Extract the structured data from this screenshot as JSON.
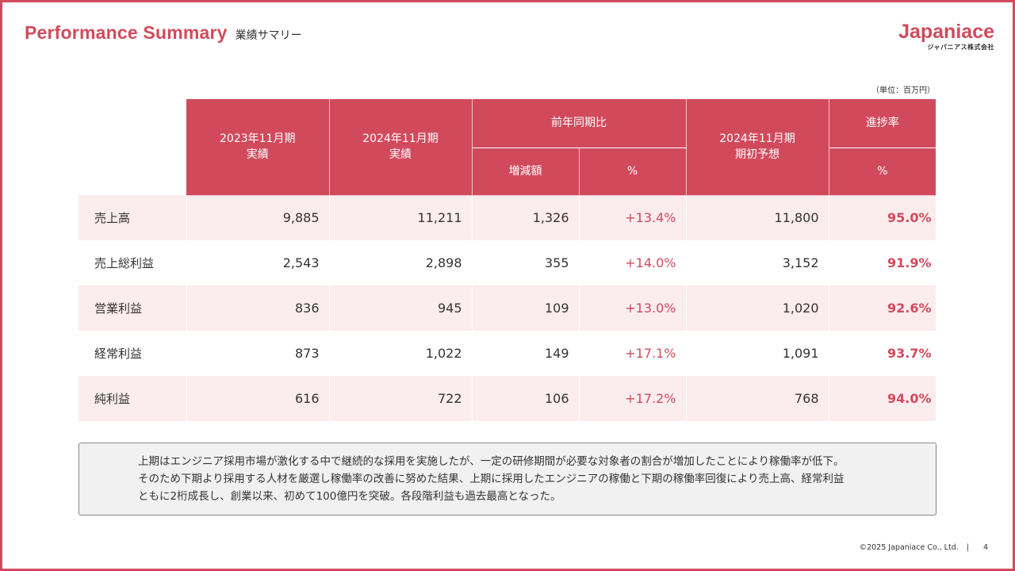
{
  "header": {
    "title_en": "Performance Summary",
    "title_ja": "業績サマリー",
    "logo_main": "Japaniace",
    "logo_sub": "ジャパニアス株式会社"
  },
  "unit_note": "（単位：百万円）",
  "table": {
    "headers": {
      "col1": [
        "2023年11月期",
        "実績"
      ],
      "col2": [
        "2024年11月期",
        "実績"
      ],
      "group_yoy": "前年同期比",
      "yoy_amount": "増減額",
      "yoy_percent": "%",
      "col5": [
        "2024年11月期",
        "期初予想"
      ],
      "group_progress": "進捗率",
      "progress_percent": "%"
    },
    "rows": [
      {
        "label": "売上高",
        "fy2023": "9,885",
        "fy2024": "11,211",
        "change": "1,326",
        "change_pct": "+13.4%",
        "forecast": "11,800",
        "progress": "95.0%"
      },
      {
        "label": "売上総利益",
        "fy2023": "2,543",
        "fy2024": "2,898",
        "change": "355",
        "change_pct": "+14.0%",
        "forecast": "3,152",
        "progress": "91.9%"
      },
      {
        "label": "営業利益",
        "fy2023": "836",
        "fy2024": "945",
        "change": "109",
        "change_pct": "+13.0%",
        "forecast": "1,020",
        "progress": "92.6%"
      },
      {
        "label": "経常利益",
        "fy2023": "873",
        "fy2024": "1,022",
        "change": "149",
        "change_pct": "+17.1%",
        "forecast": "1,091",
        "progress": "93.7%"
      },
      {
        "label": "純利益",
        "fy2023": "616",
        "fy2024": "722",
        "change": "106",
        "change_pct": "+17.2%",
        "forecast": "768",
        "progress": "94.0%"
      }
    ]
  },
  "note_lines": [
    "上期はエンジニア採用市場が激化する中で継続的な採用を実施したが、一定の研修期間が必要な対象者の割合が増加したことにより稼働率が低下。",
    "そのため下期より採用する人材を厳選し稼働率の改善に努めた結果、上期に採用したエンジニアの稼働と下期の稼働率回復により売上高、経常利益",
    "ともに2桁成長し、創業以来、初めて100億円を突破。各段階利益も過去最高となった。"
  ],
  "footer": {
    "copyright": "©2025 Japaniace Co., Ltd.",
    "separator": "|",
    "page_number": "4"
  },
  "colors": {
    "accent": "#d14a5c",
    "row_tint": "#fbecee",
    "note_bg": "#f1f1f1"
  }
}
